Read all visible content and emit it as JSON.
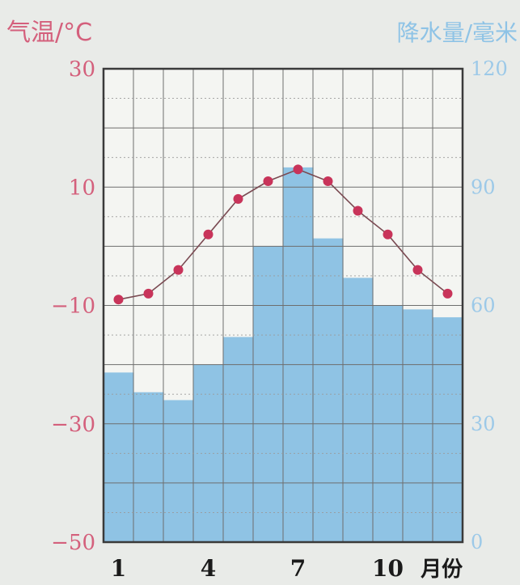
{
  "chart_data": {
    "type": "bar+line",
    "months": [
      1,
      2,
      3,
      4,
      5,
      6,
      7,
      8,
      9,
      10,
      11,
      12
    ],
    "x_tick_labels": [
      "1",
      "4",
      "7",
      "10"
    ],
    "x_unit": "月份",
    "temperature": {
      "axis_title": "气温/°C",
      "unit": "°C",
      "values": [
        -9,
        -8,
        -4,
        2,
        8,
        11,
        13,
        11,
        6,
        2,
        -4,
        -8
      ],
      "ylim": [
        -50,
        30
      ],
      "ticks": [
        30,
        10,
        -10,
        -30,
        -50
      ],
      "tick_labels": [
        "30",
        "10",
        "−10",
        "−30",
        "−50"
      ],
      "color": "#c8345a"
    },
    "precipitation": {
      "axis_title": "降水量/毫米",
      "unit": "毫米",
      "values": [
        43,
        38,
        36,
        45,
        52,
        75,
        95,
        77,
        67,
        60,
        59,
        57
      ],
      "ylim": [
        0,
        120
      ],
      "ticks": [
        120,
        90,
        60,
        30,
        0
      ],
      "tick_labels": [
        "120",
        "90",
        "60",
        "30",
        "0"
      ],
      "color": "#8fc3e4"
    },
    "grid": true
  }
}
